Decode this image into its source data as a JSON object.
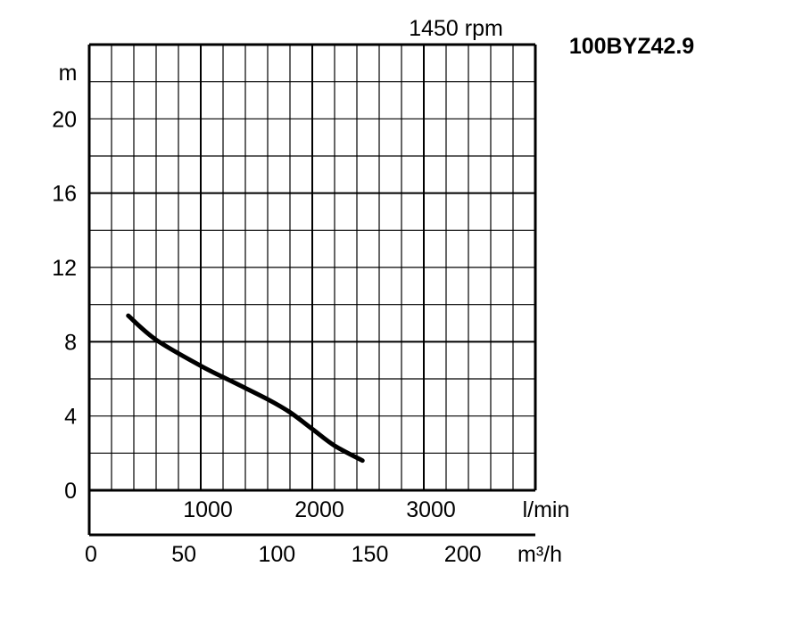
{
  "model": "100BYZ42.9",
  "speed_label": "1450 rpm",
  "chart_data": {
    "type": "line",
    "title": "100BYZ42.9",
    "subtitle": "1450 rpm",
    "ylabel": "m",
    "ylim": [
      0,
      24
    ],
    "yticks": [
      "0",
      "4",
      "8",
      "12",
      "16",
      "20"
    ],
    "xlim_lmin": [
      0,
      4000
    ],
    "x_lmin_ticks": [
      "1000",
      "2000",
      "3000"
    ],
    "x_lmin_label": "l/min",
    "xlim_m3h": [
      0,
      240
    ],
    "x_m3h_ticks": [
      "0",
      "50",
      "100",
      "150",
      "200"
    ],
    "x_m3h_label": "m³/h",
    "grid": true,
    "series": [
      {
        "x_unit": "l/min",
        "x": [
          350,
          600,
          1000,
          1300,
          1600,
          1800,
          2000,
          2200,
          2450
        ],
        "y": [
          9.4,
          8.1,
          6.7,
          5.8,
          4.9,
          4.2,
          3.3,
          2.4,
          1.6
        ]
      }
    ]
  }
}
